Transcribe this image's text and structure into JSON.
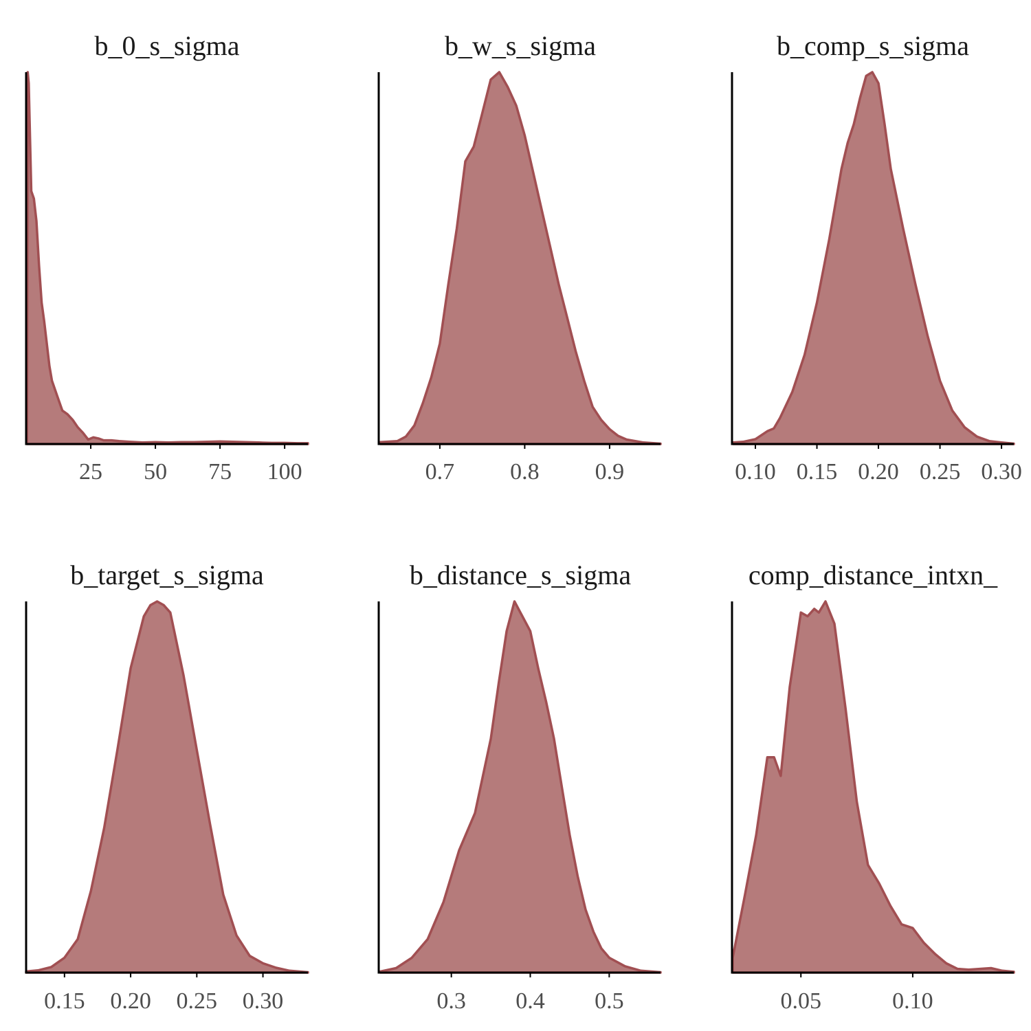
{
  "colors": {
    "fill": "#b57b7b",
    "stroke": "#a14f52",
    "axis": "#000000",
    "tick_text": "#4d4d4d",
    "title_text": "#1a1a1a"
  },
  "chart_data": [
    {
      "type": "area",
      "title": "b_0_s_sigma",
      "xlim": [
        0,
        109
      ],
      "xticks": [
        25,
        50,
        75,
        100
      ],
      "xtick_labels": [
        "25",
        "50",
        "75",
        "100"
      ],
      "x": [
        0.3,
        0.6,
        1,
        2,
        3,
        4,
        5,
        6,
        7,
        8,
        9,
        10,
        12,
        14,
        16,
        18,
        20,
        22,
        24,
        26,
        28,
        30,
        33,
        36,
        40,
        45,
        50,
        55,
        60,
        65,
        70,
        75,
        80,
        85,
        90,
        95,
        100,
        105,
        109
      ],
      "y": [
        0,
        1.0,
        0.97,
        0.68,
        0.66,
        0.6,
        0.48,
        0.38,
        0.33,
        0.27,
        0.21,
        0.17,
        0.13,
        0.09,
        0.08,
        0.065,
        0.045,
        0.03,
        0.012,
        0.018,
        0.015,
        0.01,
        0.01,
        0.008,
        0.006,
        0.004,
        0.005,
        0.004,
        0.005,
        0.005,
        0.006,
        0.007,
        0.006,
        0.005,
        0.004,
        0.003,
        0.003,
        0.002,
        0.002
      ]
    },
    {
      "type": "area",
      "title": "b_w_s_sigma",
      "xlim": [
        0.628,
        0.96
      ],
      "xticks": [
        0.7,
        0.8,
        0.9
      ],
      "xtick_labels": [
        "0.7",
        "0.8",
        "0.9"
      ],
      "x": [
        0.63,
        0.65,
        0.66,
        0.67,
        0.68,
        0.69,
        0.7,
        0.71,
        0.72,
        0.73,
        0.74,
        0.75,
        0.76,
        0.77,
        0.78,
        0.79,
        0.8,
        0.81,
        0.82,
        0.83,
        0.84,
        0.85,
        0.86,
        0.87,
        0.88,
        0.89,
        0.9,
        0.91,
        0.92,
        0.94,
        0.96
      ],
      "y": [
        0.005,
        0.008,
        0.02,
        0.05,
        0.11,
        0.18,
        0.27,
        0.43,
        0.58,
        0.76,
        0.8,
        0.89,
        0.98,
        1.0,
        0.96,
        0.91,
        0.83,
        0.73,
        0.63,
        0.53,
        0.43,
        0.34,
        0.25,
        0.17,
        0.1,
        0.065,
        0.04,
        0.022,
        0.012,
        0.004,
        0.001
      ]
    },
    {
      "type": "area",
      "title": "b_comp_s_sigma",
      "xlim": [
        0.081,
        0.31
      ],
      "xticks": [
        0.1,
        0.15,
        0.2,
        0.25,
        0.3
      ],
      "xtick_labels": [
        "0.10",
        "0.15",
        "0.20",
        "0.25",
        "0.30"
      ],
      "x": [
        0.082,
        0.09,
        0.1,
        0.11,
        0.115,
        0.12,
        0.13,
        0.14,
        0.15,
        0.16,
        0.17,
        0.175,
        0.18,
        0.185,
        0.19,
        0.195,
        0.2,
        0.205,
        0.21,
        0.22,
        0.23,
        0.24,
        0.25,
        0.26,
        0.27,
        0.28,
        0.29,
        0.3,
        0.31
      ],
      "y": [
        0.004,
        0.006,
        0.013,
        0.035,
        0.042,
        0.07,
        0.14,
        0.24,
        0.38,
        0.55,
        0.74,
        0.81,
        0.86,
        0.93,
        0.99,
        1.0,
        0.97,
        0.86,
        0.74,
        0.58,
        0.43,
        0.29,
        0.17,
        0.09,
        0.045,
        0.02,
        0.008,
        0.004,
        0.001
      ]
    },
    {
      "type": "area",
      "title": "b_target_s_sigma",
      "xlim": [
        0.121,
        0.334
      ],
      "xticks": [
        0.15,
        0.2,
        0.25,
        0.3
      ],
      "xtick_labels": [
        "0.15",
        "0.20",
        "0.25",
        "0.30"
      ],
      "x": [
        0.121,
        0.13,
        0.14,
        0.15,
        0.16,
        0.17,
        0.18,
        0.19,
        0.2,
        0.21,
        0.215,
        0.22,
        0.225,
        0.23,
        0.24,
        0.25,
        0.26,
        0.27,
        0.28,
        0.29,
        0.3,
        0.31,
        0.32,
        0.334
      ],
      "y": [
        0.003,
        0.006,
        0.015,
        0.04,
        0.09,
        0.22,
        0.39,
        0.6,
        0.82,
        0.96,
        0.99,
        1.0,
        0.99,
        0.97,
        0.8,
        0.6,
        0.4,
        0.21,
        0.1,
        0.045,
        0.025,
        0.013,
        0.005,
        0.001
      ]
    },
    {
      "type": "area",
      "title": "b_distance_s_sigma",
      "xlim": [
        0.208,
        0.565
      ],
      "xticks": [
        0.3,
        0.4,
        0.5
      ],
      "xtick_labels": [
        "0.3",
        "0.4",
        "0.5"
      ],
      "x": [
        0.21,
        0.23,
        0.25,
        0.27,
        0.29,
        0.31,
        0.33,
        0.35,
        0.36,
        0.37,
        0.38,
        0.39,
        0.4,
        0.41,
        0.42,
        0.43,
        0.44,
        0.45,
        0.46,
        0.47,
        0.48,
        0.49,
        0.5,
        0.52,
        0.54,
        0.565
      ],
      "y": [
        0.003,
        0.012,
        0.04,
        0.09,
        0.19,
        0.33,
        0.43,
        0.63,
        0.78,
        0.92,
        1.0,
        0.96,
        0.92,
        0.82,
        0.73,
        0.63,
        0.5,
        0.37,
        0.26,
        0.17,
        0.11,
        0.065,
        0.04,
        0.017,
        0.005,
        0.001
      ]
    },
    {
      "type": "area",
      "title": "comp_distance_intxn_",
      "xlim": [
        0.0192,
        0.1452
      ],
      "xticks": [
        0.05,
        0.1
      ],
      "xtick_labels": [
        "0.05",
        "0.10"
      ],
      "x": [
        0.0195,
        0.025,
        0.03,
        0.035,
        0.038,
        0.041,
        0.045,
        0.05,
        0.053,
        0.056,
        0.058,
        0.061,
        0.065,
        0.07,
        0.075,
        0.08,
        0.085,
        0.09,
        0.095,
        0.1,
        0.105,
        0.11,
        0.115,
        0.12,
        0.125,
        0.13,
        0.135,
        0.14,
        0.1452
      ],
      "y": [
        0.04,
        0.21,
        0.37,
        0.58,
        0.58,
        0.53,
        0.77,
        0.97,
        0.96,
        0.98,
        0.97,
        1.0,
        0.94,
        0.71,
        0.46,
        0.29,
        0.24,
        0.18,
        0.13,
        0.12,
        0.08,
        0.05,
        0.025,
        0.01,
        0.008,
        0.01,
        0.012,
        0.005,
        0.002
      ]
    }
  ]
}
